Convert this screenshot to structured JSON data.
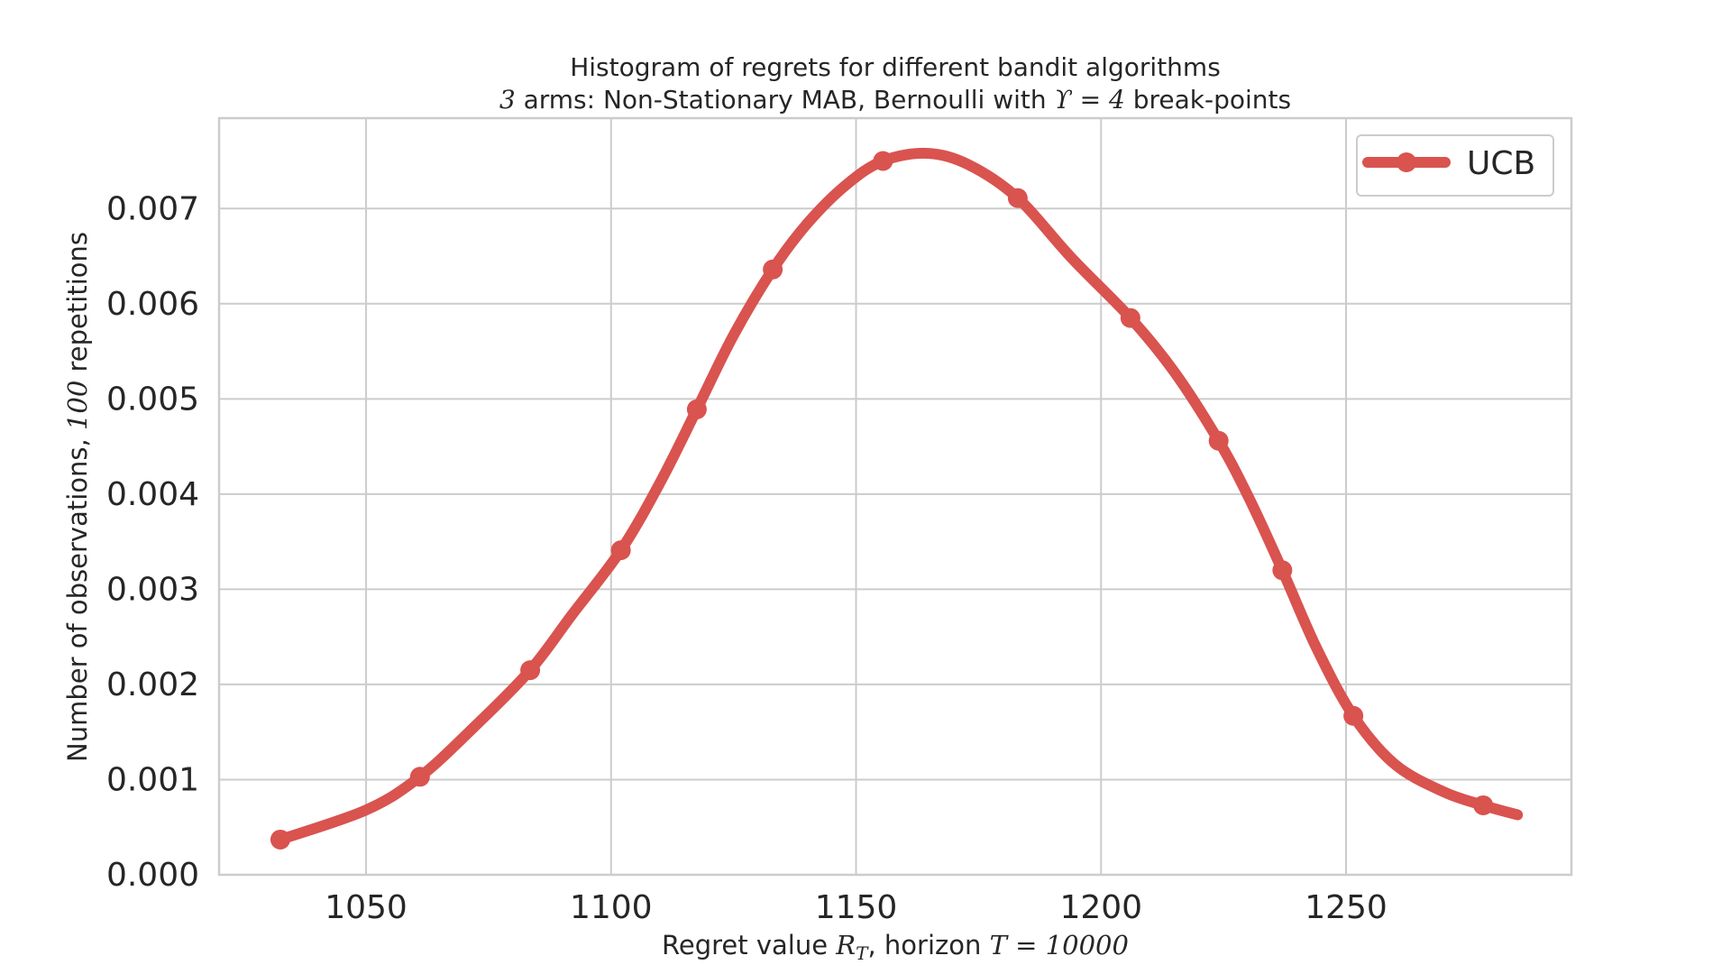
{
  "chart_data": {
    "type": "line",
    "title": "Histogram of regrets for different bandit algorithms",
    "subtitle_parts": [
      "3",
      " arms: Non-Stationary MAB, Bernoulli with ",
      "ϒ = 4",
      " break-points"
    ],
    "xlabel_parts": [
      "Regret value ",
      "R",
      "T",
      ", horizon ",
      "T = 10000"
    ],
    "ylabel_parts": [
      "Number of observations, ",
      "100",
      " repetitions"
    ],
    "xlim": [
      1020,
      1296
    ],
    "ylim": [
      0,
      0.00795
    ],
    "xticks": [
      1050,
      1100,
      1150,
      1200,
      1250
    ],
    "xtick_labels": [
      "1050",
      "1100",
      "1150",
      "1200",
      "1250"
    ],
    "yticks": [
      0,
      0.001,
      0.002,
      0.003,
      0.004,
      0.005,
      0.006,
      0.007
    ],
    "ytick_labels": [
      "0.000",
      "0.001",
      "0.002",
      "0.003",
      "0.004",
      "0.005",
      "0.006",
      "0.007"
    ],
    "grid": true,
    "legend_position": "top-right",
    "series": [
      {
        "name": "UCB",
        "color": "#d9534f",
        "markers": {
          "x": [
            1032.5,
            1061,
            1083.5,
            1102,
            1117.5,
            1133,
            1155.5,
            1183,
            1206,
            1224,
            1237,
            1251.5,
            1278
          ],
          "y": [
            0.00037,
            0.00103,
            0.00215,
            0.00341,
            0.00489,
            0.00636,
            0.0075,
            0.00711,
            0.00585,
            0.00456,
            0.0032,
            0.00167,
            0.00073
          ]
        },
        "curve": {
          "x": [
            1032.5,
            1050,
            1061,
            1072,
            1083.5,
            1092,
            1102,
            1110,
            1117.5,
            1125,
            1133,
            1140,
            1148,
            1155.5,
            1164.5,
            1173,
            1183,
            1194,
            1206,
            1215,
            1224,
            1230,
            1237,
            1244,
            1251.5,
            1260,
            1270,
            1278,
            1285
          ],
          "y": [
            0.00037,
            0.00068,
            0.00103,
            0.00155,
            0.00215,
            0.00273,
            0.00341,
            0.00412,
            0.00489,
            0.00567,
            0.00636,
            0.00684,
            0.00725,
            0.0075,
            0.00758,
            0.00746,
            0.00711,
            0.00648,
            0.00585,
            0.00528,
            0.00456,
            0.00398,
            0.0032,
            0.00238,
            0.00167,
            0.00116,
            0.00087,
            0.00073,
            0.00063
          ]
        }
      }
    ]
  }
}
